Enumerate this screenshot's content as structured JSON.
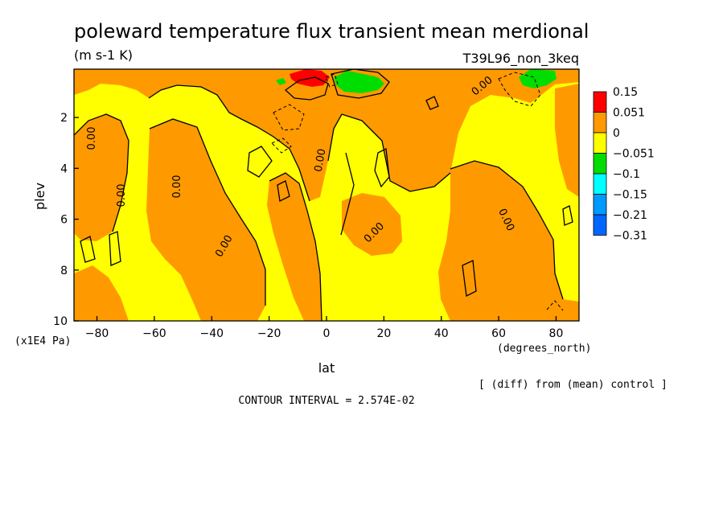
{
  "chart_data": {
    "type": "heatmap",
    "title": "poleward temperature flux transient mean merdional",
    "units": "(m s-1 K)",
    "run_label": "T39L96_non_3keq",
    "xlabel": "lat",
    "x_units": "(degrees_north)",
    "ylabel": "plev",
    "y_units": "(x1E4 Pa)",
    "x_ticks": [
      "-80",
      "-60",
      "-40",
      "-20",
      "0",
      "20",
      "40",
      "60",
      "80"
    ],
    "y_ticks": [
      "2",
      "4",
      "6",
      "8",
      "10"
    ],
    "xlim": [
      -88,
      88
    ],
    "ylim": [
      10,
      0.1
    ],
    "contour_interval_label": "CONTOUR INTERVAL = 2.574E-02",
    "diff_note": "[ (diff) from (mean) control ]",
    "contour_line_labels": [
      "0.00",
      "0.00",
      "0.00",
      "0.00",
      "0.00",
      "0.00",
      "0.00",
      "0.00"
    ],
    "colorbar": {
      "levels": [
        "0.15",
        "0.051",
        "0",
        "-0.051",
        "-0.1",
        "-0.15",
        "-0.21",
        "-0.31"
      ],
      "colors": [
        "#ff0000",
        "#ff9900",
        "#ffff00",
        "#00dd00",
        "#00ffff",
        "#0099ff",
        "#0066ff"
      ]
    },
    "regions": {
      "background": "#ffff00",
      "positive_band": "#ff9900",
      "strong_positive": "#ff0000",
      "negative": "#00dd00"
    }
  }
}
